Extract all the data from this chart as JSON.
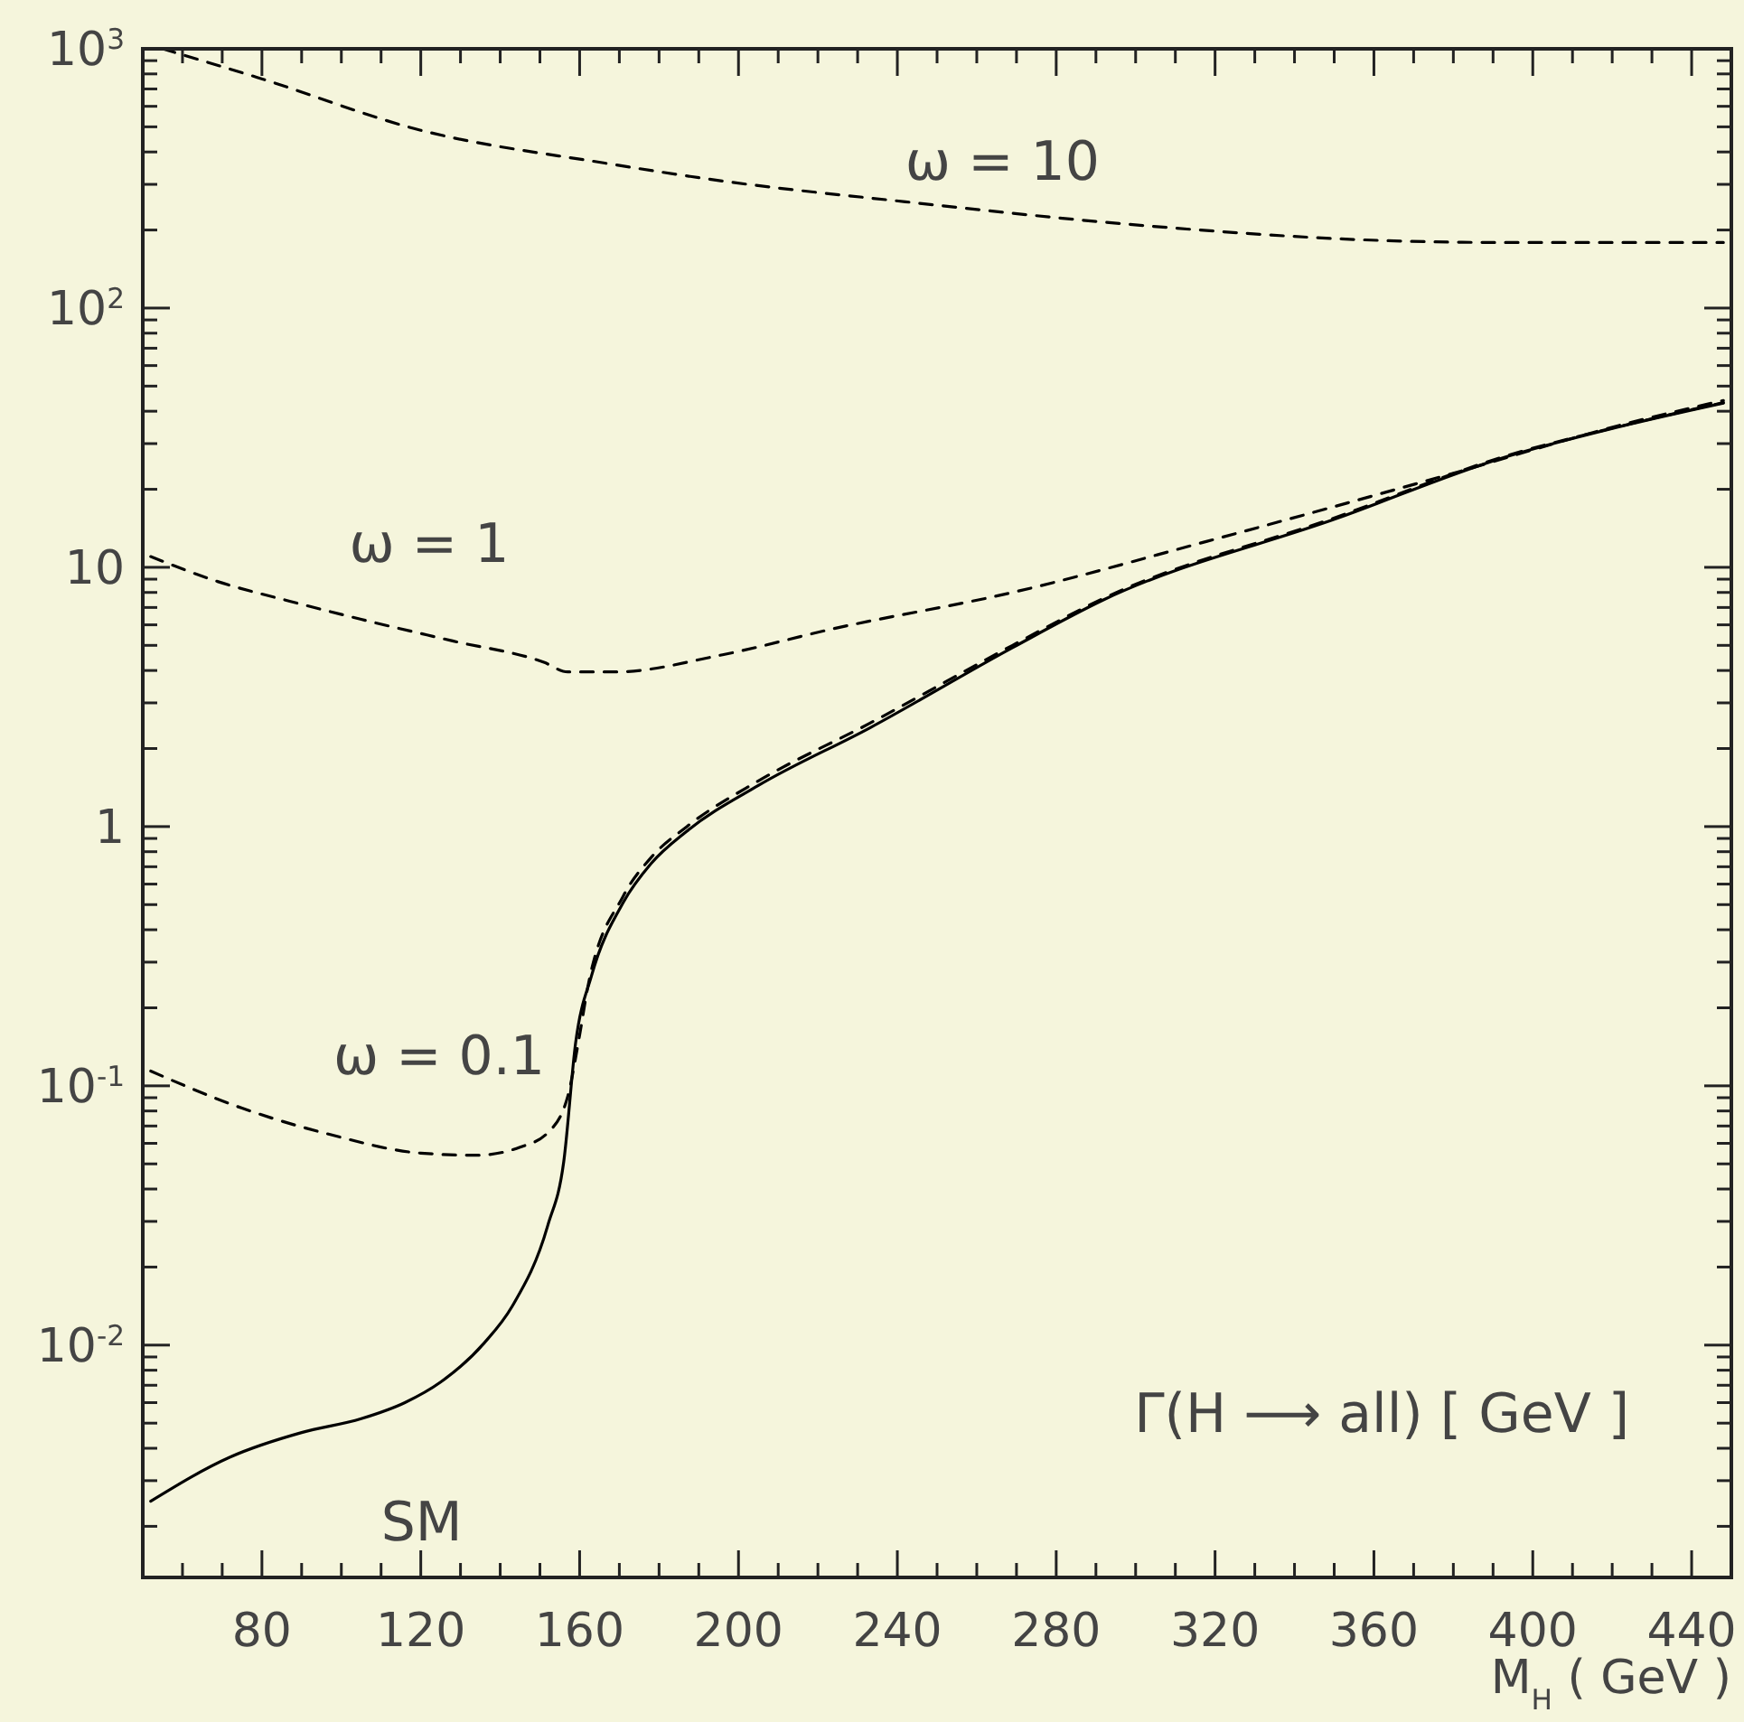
{
  "chart_data": {
    "type": "line",
    "ylabel": "Γ(H ⟶ all) [ GeV ]",
    "xlabel": "M$_{H}$ ( GeV )",
    "log": "y",
    "marker": "none",
    "xlim": [
      50,
      450
    ],
    "ylim": [
      0.00127,
      1000
    ],
    "xticks": [
      {
        "value": 60,
        "label": null
      },
      {
        "value": 70,
        "label": null
      },
      80,
      {
        "value": 90,
        "label": null
      },
      {
        "value": 100,
        "label": null
      },
      {
        "value": 110,
        "label": null
      },
      120,
      {
        "value": 130,
        "label": null
      },
      {
        "value": 140,
        "label": null
      },
      {
        "value": 150,
        "label": null
      },
      160,
      {
        "value": 170,
        "label": null
      },
      {
        "value": 180,
        "label": null
      },
      {
        "value": 190,
        "label": null
      },
      200,
      {
        "value": 210,
        "label": null
      },
      {
        "value": 220,
        "label": null
      },
      {
        "value": 230,
        "label": null
      },
      240,
      {
        "value": 250,
        "label": null
      },
      {
        "value": 260,
        "label": null
      },
      {
        "value": 270,
        "label": null
      },
      280,
      {
        "value": 290,
        "label": null
      },
      {
        "value": 300,
        "label": null
      },
      {
        "value": 310,
        "label": null
      },
      320,
      {
        "value": 330,
        "label": null
      },
      {
        "value": 340,
        "label": null
      },
      {
        "value": 350,
        "label": null
      },
      360,
      {
        "value": 370,
        "label": null
      },
      {
        "value": 380,
        "label": null
      },
      {
        "value": 390,
        "label": null
      },
      400,
      {
        "value": 410,
        "label": null
      },
      {
        "value": 420,
        "label": null
      },
      {
        "value": 430,
        "label": null
      },
      440
    ],
    "yticks": [
      {
        "value": 0.002,
        "label": null
      },
      {
        "value": 0.003,
        "label": null
      },
      {
        "value": 0.004,
        "label": null
      },
      {
        "value": 0.005,
        "label": null
      },
      {
        "value": 0.006,
        "label": null
      },
      {
        "value": 0.007,
        "label": null
      },
      {
        "value": 0.008,
        "label": null
      },
      {
        "value": 0.009,
        "label": null
      },
      {
        "value": 0.01,
        "label": "10$^{-2}$"
      },
      {
        "value": 0.02,
        "label": null
      },
      {
        "value": 0.03,
        "label": null
      },
      {
        "value": 0.04,
        "label": null
      },
      {
        "value": 0.05,
        "label": null
      },
      {
        "value": 0.06,
        "label": null
      },
      {
        "value": 0.07,
        "label": null
      },
      {
        "value": 0.08,
        "label": null
      },
      {
        "value": 0.09,
        "label": null
      },
      {
        "value": 0.1,
        "label": "10$^{-1}$"
      },
      {
        "value": 0.2,
        "label": null
      },
      {
        "value": 0.3,
        "label": null
      },
      {
        "value": 0.4,
        "label": null
      },
      {
        "value": 0.5,
        "label": null
      },
      {
        "value": 0.6,
        "label": null
      },
      {
        "value": 0.7,
        "label": null
      },
      {
        "value": 0.8,
        "label": null
      },
      {
        "value": 0.9,
        "label": null
      },
      1,
      {
        "value": 2,
        "label": null
      },
      {
        "value": 3,
        "label": null
      },
      {
        "value": 4,
        "label": null
      },
      {
        "value": 5,
        "label": null
      },
      {
        "value": 6,
        "label": null
      },
      {
        "value": 7,
        "label": null
      },
      {
        "value": 8,
        "label": null
      },
      {
        "value": 9,
        "label": null
      },
      10,
      {
        "value": 20,
        "label": null
      },
      {
        "value": 30,
        "label": null
      },
      {
        "value": 40,
        "label": null
      },
      {
        "value": 50,
        "label": null
      },
      {
        "value": 60,
        "label": null
      },
      {
        "value": 70,
        "label": null
      },
      {
        "value": 80,
        "label": null
      },
      {
        "value": 90,
        "label": null
      },
      {
        "value": 100,
        "label": "10$^{2}$"
      },
      {
        "value": 200,
        "label": null
      },
      {
        "value": 300,
        "label": null
      },
      {
        "value": 400,
        "label": null
      },
      {
        "value": 500,
        "label": null
      },
      {
        "value": 600,
        "label": null
      },
      {
        "value": 700,
        "label": null
      },
      {
        "value": 800,
        "label": null
      },
      {
        "value": 900,
        "label": null
      },
      {
        "value": 1000,
        "label": "10$^{3}$"
      }
    ],
    "series": [
      {
        "name": "ω = 10",
        "color": "#000000",
        "line_style": "dashed",
        "x": [
          55,
          79,
          120,
          166,
          196,
          242,
          302,
          363,
          393,
          448
        ],
        "values": [
          1000,
          774,
          485,
          363,
          309,
          257,
          208,
          182,
          179,
          179
        ]
      },
      {
        "name": "ω = 1",
        "color": "#000000",
        "line_style": "dashed",
        "x": [
          52,
          69,
          87,
          105,
          128,
          151,
          157,
          169,
          196,
          224,
          269,
          318,
          378,
          424,
          448
        ],
        "values": [
          11,
          8.8,
          7.4,
          6.3,
          5.2,
          4.3,
          3.95,
          3.95,
          4.6,
          5.8,
          8.0,
          12.6,
          22.6,
          36,
          44
        ]
      },
      {
        "name": "ω = 0.1",
        "color": "#000000",
        "line_style": "dashed",
        "x": [
          52,
          75,
          97,
          120,
          134,
          145,
          152,
          157,
          160,
          162,
          171,
          178,
          187,
          205,
          233,
          269,
          292,
          351,
          393,
          424,
          448
        ],
        "values": [
          0.114,
          0.082,
          0.065,
          0.055,
          0.054,
          0.058,
          0.066,
          0.091,
          0.157,
          0.238,
          0.54,
          0.76,
          1.0,
          1.5,
          2.5,
          5.0,
          7.6,
          15.7,
          26.8,
          35.6,
          43.2
        ]
      },
      {
        "name": "SM",
        "color": "#000000",
        "line_style": "solid",
        "x": [
          52,
          72,
          90,
          105,
          116,
          125,
          136,
          143,
          152,
          156,
          159,
          163,
          171,
          178,
          187,
          205,
          233,
          269,
          292,
          351,
          393,
          424,
          448
        ],
        "values": [
          0.0025,
          0.0037,
          0.0046,
          0.0052,
          0.006,
          0.0072,
          0.0102,
          0.0141,
          0.029,
          0.051,
          0.147,
          0.266,
          0.51,
          0.72,
          0.96,
          1.44,
          2.4,
          4.9,
          7.5,
          15.5,
          26.6,
          35.5,
          43
        ]
      }
    ]
  }
}
